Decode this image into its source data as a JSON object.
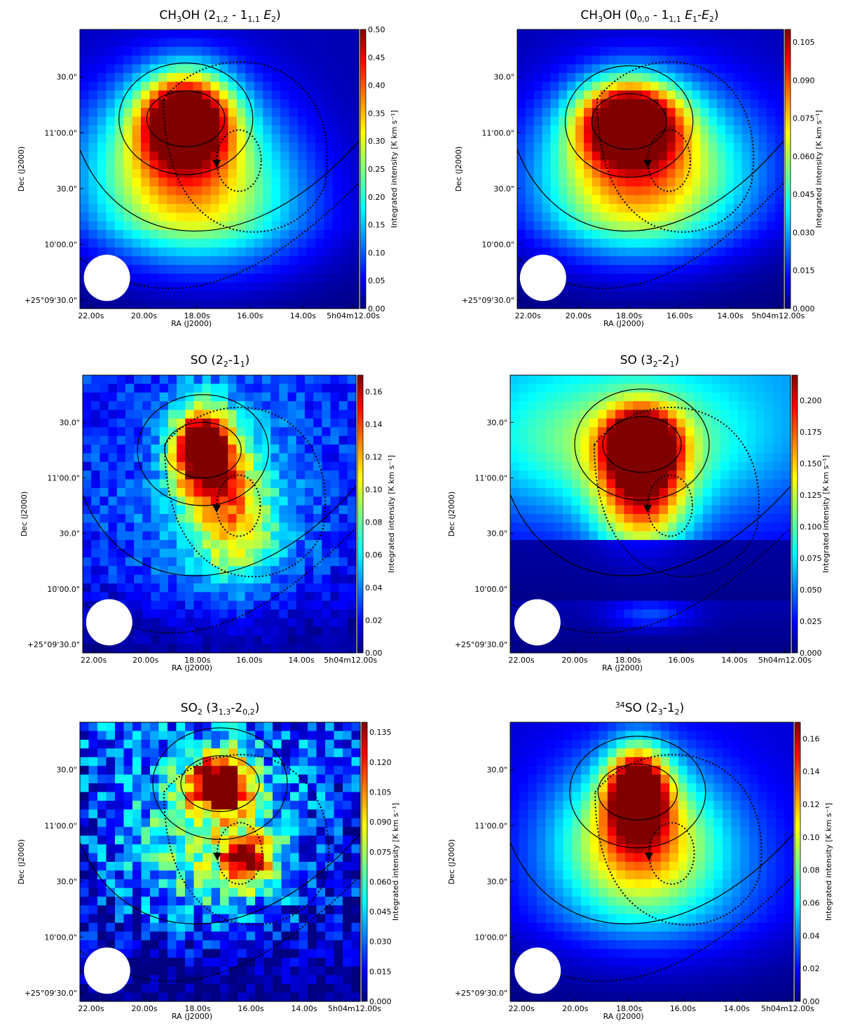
{
  "figure": {
    "panels": [
      {
        "id": "ch3oh-a",
        "title": {
          "pre": "CH",
          "sub1": "3",
          "mid": "OH (2",
          "sub2": "1,2",
          "mid2": " - 1",
          "sub3": "1,1",
          "tail": " E",
          "sub4": "2",
          "end": ")"
        }
      }
    ]
  },
  "chart_data": [
    {
      "type": "heatmap",
      "panel": "ch3oh_21_11",
      "title": "CH3OH (2_{1,2} - 1_{1,1} E_2)",
      "xlabel": "RA (J2000)",
      "ylabel": "Dec (J2000)",
      "xticks": [
        "22.00s",
        "20.00s",
        "18.00s",
        "16.00s",
        "14.00s",
        "5h04m12.00s"
      ],
      "yticks": [
        "+25°09'30.0\"",
        "10'00.0\"",
        "30.0\"",
        "11'00.0\"",
        "30.0\""
      ],
      "colorbar_label": "Integrated intensity [K km s⁻¹]",
      "colorbar_ticks": [
        "0.00",
        "0.05",
        "0.10",
        "0.15",
        "0.20",
        "0.25",
        "0.30",
        "0.35",
        "0.40",
        "0.45",
        "0.50"
      ],
      "clim": [
        0,
        0.5
      ],
      "peak": {
        "ra": "17.6s",
        "dec": "11'14\"",
        "value": 0.5
      }
    },
    {
      "type": "heatmap",
      "panel": "ch3oh_00_11",
      "title": "CH3OH (0_{0,0} - 1_{1,1} E_1-E_2)",
      "xlabel": "RA (J2000)",
      "ylabel": "Dec (J2000)",
      "xticks": [
        "22.00s",
        "20.00s",
        "18.00s",
        "16.00s",
        "14.00s",
        "5h04m12.00s"
      ],
      "yticks": [
        "+25°09'30.0\"",
        "10'00.0\"",
        "30.0\"",
        "11'00.0\"",
        "30.0\""
      ],
      "colorbar_label": "Integrated intensity [K km s⁻¹]",
      "colorbar_ticks": [
        "0.000",
        "0.015",
        "0.030",
        "0.045",
        "0.060",
        "0.075",
        "0.090",
        "0.105"
      ],
      "clim": [
        0,
        0.11
      ],
      "peak": {
        "ra": "17.8s",
        "dec": "11'10\"",
        "value": 0.11
      }
    },
    {
      "type": "heatmap",
      "panel": "so_22_11",
      "title": "SO (2_2-1_1)",
      "xlabel": "RA (J2000)",
      "ylabel": "Dec (J2000)",
      "xticks": [
        "22.00s",
        "20.00s",
        "18.00s",
        "16.00s",
        "14.00s",
        "5h04m12.00s"
      ],
      "yticks": [
        "+25°09'30.0\"",
        "10'00.0\"",
        "30.0\"",
        "11'00.0\"",
        "30.0\""
      ],
      "colorbar_label": "Integrated intensity [K km s⁻¹]",
      "colorbar_ticks": [
        "0.00",
        "0.02",
        "0.04",
        "0.06",
        "0.08",
        "0.10",
        "0.12",
        "0.14",
        "0.16"
      ],
      "clim": [
        0,
        0.17
      ],
      "peak": {
        "ra": "17.3s",
        "dec": "11'22\"",
        "value": 0.17
      }
    },
    {
      "type": "heatmap",
      "panel": "so_32_21",
      "title": "SO (3_2-2_1)",
      "xlabel": "RA (J2000)",
      "ylabel": "Dec (J2000)",
      "xticks": [
        "22.00s",
        "20.00s",
        "18.00s",
        "16.00s",
        "14.00s",
        "5h04m12.00s"
      ],
      "yticks": [
        "+25°09'30.0\"",
        "10'00.0\"",
        "30.0\"",
        "11'00.0\"",
        "30.0\""
      ],
      "colorbar_label": "Integrated intensity [K km s⁻¹]",
      "colorbar_ticks": [
        "0.000",
        "0.025",
        "0.050",
        "0.075",
        "0.100",
        "0.125",
        "0.150",
        "0.175",
        "0.200"
      ],
      "clim": [
        0,
        0.22
      ],
      "peak": {
        "ra": "17.0s",
        "dec": "11'22\"",
        "value": 0.22
      }
    },
    {
      "type": "heatmap",
      "panel": "so2_313_202",
      "title": "SO2 (3_{1,3}-2_{0,2})",
      "xlabel": "RA (J2000)",
      "ylabel": "Dec (J2000)",
      "xticks": [
        "22.00s",
        "20.00s",
        "18.00s",
        "16.00s",
        "14.00s",
        "5h04m12.00s"
      ],
      "yticks": [
        "+25°09'30.0\"",
        "10'00.0\"",
        "30.0\"",
        "11'00.0\"",
        "30.0\""
      ],
      "colorbar_label": "Integrated intensity [K km s⁻¹]",
      "colorbar_ticks": [
        "0.000",
        "0.015",
        "0.030",
        "0.045",
        "0.060",
        "0.075",
        "0.090",
        "0.105",
        "0.120",
        "0.135"
      ],
      "clim": [
        0,
        0.14
      ],
      "peak": {
        "ra": "17.0s",
        "dec": "11'22\"",
        "value": 0.14
      }
    },
    {
      "type": "heatmap",
      "panel": "34so_23_12",
      "title": "34SO (2_3-1_2)",
      "xlabel": "RA (J2000)",
      "ylabel": "Dec (J2000)",
      "xticks": [
        "22.00s",
        "20.00s",
        "18.00s",
        "16.00s",
        "14.00s",
        "5h04m12.00s"
      ],
      "yticks": [
        "+25°09'30.0\"",
        "10'00.0\"",
        "30.0\"",
        "11'00.0\"",
        "30.0\""
      ],
      "colorbar_label": "Integrated intensity [K km s⁻¹]",
      "colorbar_ticks": [
        "0.00",
        "0.02",
        "0.04",
        "0.06",
        "0.08",
        "0.10",
        "0.12",
        "0.14",
        "0.16"
      ],
      "clim": [
        0,
        0.17
      ],
      "peak": {
        "ra": "17.3s",
        "dec": "11'18\"",
        "value": 0.17
      }
    }
  ]
}
